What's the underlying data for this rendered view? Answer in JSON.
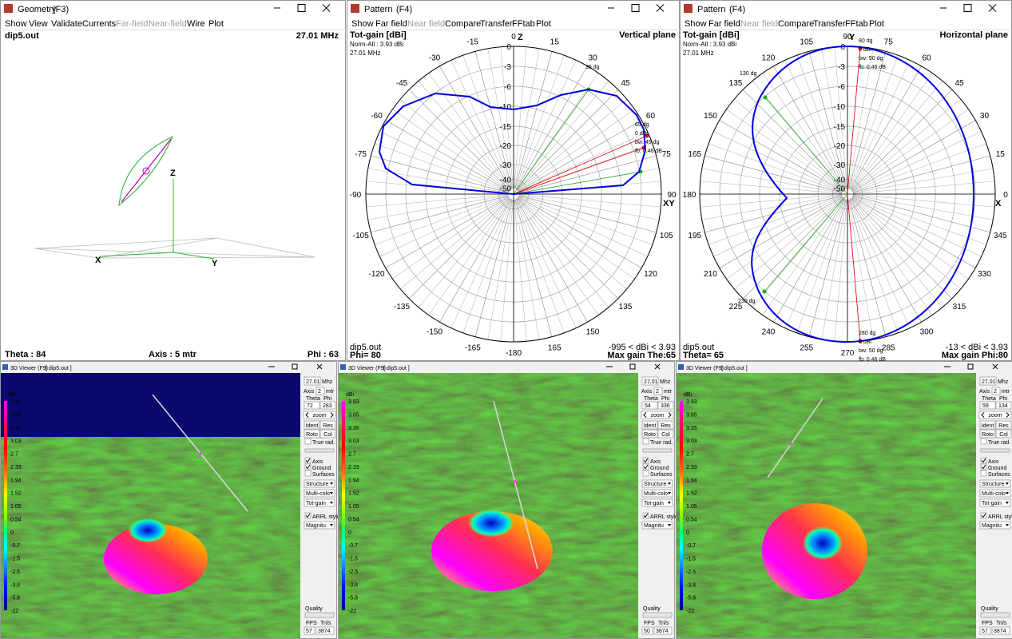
{
  "geometry": {
    "title": "Geometry",
    "key": "(F3)",
    "menu": [
      "Show",
      "View",
      "Validate",
      "Currents",
      "Far-field",
      "Near-field",
      "Wire",
      "Plot"
    ],
    "file": "dip5.out",
    "frequency": "27.01 MHz",
    "axes": [
      "Z",
      "X",
      "Y"
    ],
    "footer": [
      "Theta : 84",
      "Axis : 5 mtr",
      "Phi : 63"
    ]
  },
  "patterns": [
    {
      "title": "Pattern",
      "key": "(F4)",
      "menu": [
        "Show",
        "Far field",
        "Near field",
        "Compare",
        "Transfer",
        "FFtab",
        "Plot"
      ],
      "info": [
        "Tot-gain [dBi]",
        "Norm-All : 3.93 dBi",
        "27.01 MHz"
      ],
      "plane": "Vertical plane",
      "angle_labels": [
        0,
        15,
        30,
        45,
        60,
        75,
        90,
        105,
        120,
        135,
        150,
        165,
        -180,
        -165,
        -150,
        -135,
        -120,
        -105,
        -90,
        -75,
        -60,
        -45,
        -30,
        -15
      ],
      "ring_labels": [
        0,
        -3,
        -6,
        -10,
        -15,
        -20,
        -30,
        -40,
        -50
      ],
      "axes": [
        "Z",
        "XY"
      ],
      "green_labels": [
        "35 dg"
      ],
      "red_labels": [
        "65 dg",
        "0 dBi",
        "bw: 45 dg",
        "fb: 0.46 dB"
      ],
      "footer": [
        "dip5.out",
        "-995 < dBi < 3.93",
        "Phi= 80",
        "Max gain The:65"
      ]
    },
    {
      "title": "Pattern",
      "key": "(F4)",
      "menu": [
        "Show",
        "Far field",
        "Near field",
        "Compare",
        "Transfer",
        "FFtab",
        "Plot"
      ],
      "info": [
        "Tot-gain [dBi]",
        "Norm-All : 3.93 dBi",
        "27.01 MHz"
      ],
      "plane": "Horizontal plane",
      "angle_labels": [
        90,
        75,
        60,
        45,
        30,
        15,
        0,
        345,
        330,
        315,
        300,
        285,
        270,
        255,
        240,
        225,
        210,
        195,
        180,
        165,
        150,
        135,
        120,
        105
      ],
      "ring_labels": [
        0,
        -3,
        -6,
        -10,
        -15,
        -20,
        -30,
        -40,
        -50
      ],
      "axes": [
        "Y",
        "X"
      ],
      "green_labels": [
        "130 dg",
        "230 dg"
      ],
      "red_labels": [
        "80 dg",
        "0 dBi",
        "bw: 50 dg",
        "fb: 0.46 dB",
        "280 dg",
        "0 dBi",
        "bw: 50 dg",
        "fb: 0.46 dB"
      ],
      "footer": [
        "dip5.out",
        "-13 < dBi < 3.93",
        "Theta= 65",
        "Max gain Phi:80"
      ]
    }
  ],
  "viewers": {
    "title": "3D Viewer (F9)",
    "file": "[ dip5.out ]",
    "scale_unit": "dBi",
    "scale": [
      3.93,
      3.65,
      3.35,
      3.03,
      2.7,
      2.33,
      1.94,
      1.52,
      1.05,
      0.54,
      0,
      -0.7,
      -1.5,
      -2.5,
      -3.8,
      -5.8,
      -22
    ],
    "controls": {
      "frequency": "27.01",
      "freq_unit": "Mhz",
      "axis": "Axis",
      "axis_value": 2,
      "axis_unit": "mtr",
      "theta": "Theta",
      "phi": "Phi",
      "zoom": "zoom",
      "buttons": [
        "Ident",
        "Res",
        "Roto",
        "Col"
      ],
      "true_rad": "True rad.",
      "checks": [
        "Axis",
        "Ground",
        "Surfaces"
      ],
      "dropdowns": [
        "Structure",
        "Multi-colo",
        "Tot-gain"
      ],
      "arrl": "ARRL style",
      "mode": "Magnitu",
      "quality": "Quality",
      "fps": "FPS",
      "tris": "Tri/s"
    },
    "views": [
      {
        "theta": 72,
        "phi": 283,
        "fps": 57,
        "tris": 3874
      },
      {
        "theta": 54,
        "phi": 336,
        "fps": 50,
        "tris": 3874
      },
      {
        "theta": 59,
        "phi": 134,
        "fps": 57,
        "tris": 3874
      }
    ]
  }
}
